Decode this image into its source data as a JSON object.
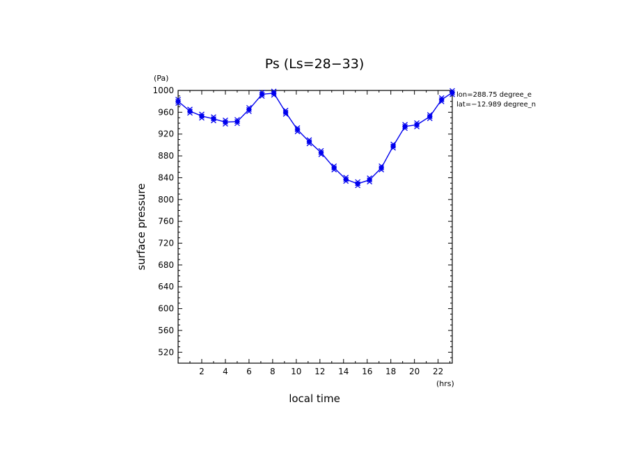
{
  "chart_data": {
    "type": "line",
    "title": "Ps (Ls=28−33)",
    "xlabel": "local time",
    "ylabel": "surface pressure",
    "x_unit": "(hrs)",
    "y_unit": "(Pa)",
    "xlim": [
      0,
      23.2
    ],
    "ylim": [
      500,
      1000
    ],
    "x_ticks": [
      2,
      4,
      6,
      8,
      10,
      12,
      14,
      16,
      18,
      20,
      22
    ],
    "y_ticks": [
      520,
      560,
      600,
      640,
      680,
      720,
      760,
      800,
      840,
      880,
      920,
      960,
      1000
    ],
    "annotations": [
      "lon=288.75 degree_e",
      "lat=−12.989 degree_n"
    ],
    "color": "#0000ee",
    "grid": false,
    "series": [
      {
        "x": [
          0.0,
          1.0,
          2.0,
          3.0,
          4.0,
          5.0,
          6.0,
          7.1,
          8.1,
          9.1,
          10.1,
          11.1,
          12.1,
          13.2,
          14.2,
          15.2,
          16.2,
          17.2,
          18.2,
          19.2,
          20.2,
          21.3,
          22.3,
          23.2
        ],
        "values": [
          980,
          962,
          953,
          948,
          942,
          943,
          965,
          993,
          995,
          960,
          928,
          906,
          886,
          858,
          837,
          829,
          836,
          858,
          898,
          934,
          937,
          952,
          983,
          996
        ]
      }
    ]
  }
}
